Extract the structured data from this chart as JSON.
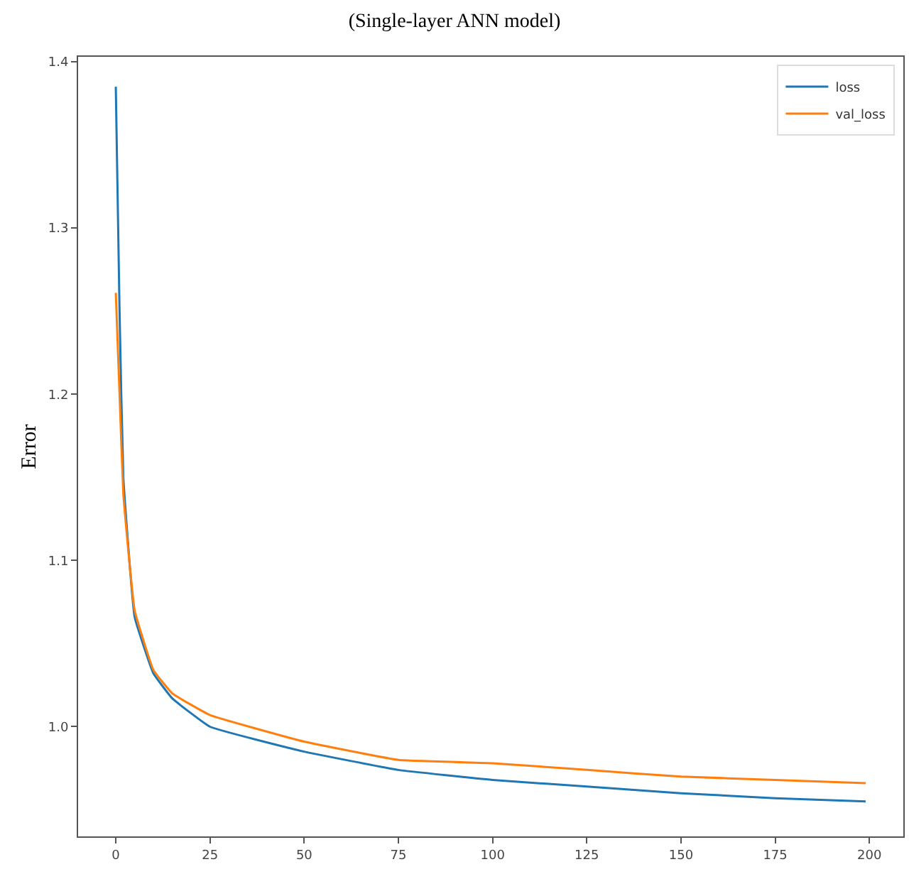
{
  "chart_data": {
    "type": "line",
    "title": "(Single-layer ANN model)",
    "ylabel": "Error",
    "xlim": [
      -10,
      209
    ],
    "xticks": [
      0,
      25,
      50,
      75,
      100,
      125,
      150,
      175,
      200
    ],
    "ylim": [
      0.934,
      1.403
    ],
    "yticks": [
      {
        "value": 1.0,
        "label": "1.0"
      },
      {
        "value": 1.1,
        "label": "1.1"
      },
      {
        "value": 1.2,
        "label": "1.2"
      },
      {
        "value": 1.3,
        "label": "1.3"
      },
      {
        "value": 1.4,
        "label": "1.4"
      }
    ],
    "legend": "top right",
    "line_style": "solid",
    "marker": "none",
    "series": [
      {
        "name": "loss",
        "color": "#1f77b4",
        "x": [
          0,
          1,
          2,
          5,
          10,
          15,
          25,
          50,
          75,
          100,
          125,
          150,
          175,
          199
        ],
        "values": [
          1.385,
          1.25,
          1.15,
          1.066,
          1.032,
          1.017,
          1.0,
          0.985,
          0.974,
          0.968,
          0.964,
          0.96,
          0.957,
          0.955
        ]
      },
      {
        "name": "val_loss",
        "color": "#ff7f0e",
        "x": [
          0,
          1,
          2,
          5,
          10,
          15,
          25,
          50,
          75,
          100,
          125,
          150,
          175,
          199
        ],
        "values": [
          1.261,
          1.2,
          1.14,
          1.07,
          1.034,
          1.02,
          1.007,
          0.991,
          0.98,
          0.978,
          0.974,
          0.97,
          0.968,
          0.966
        ]
      }
    ]
  }
}
